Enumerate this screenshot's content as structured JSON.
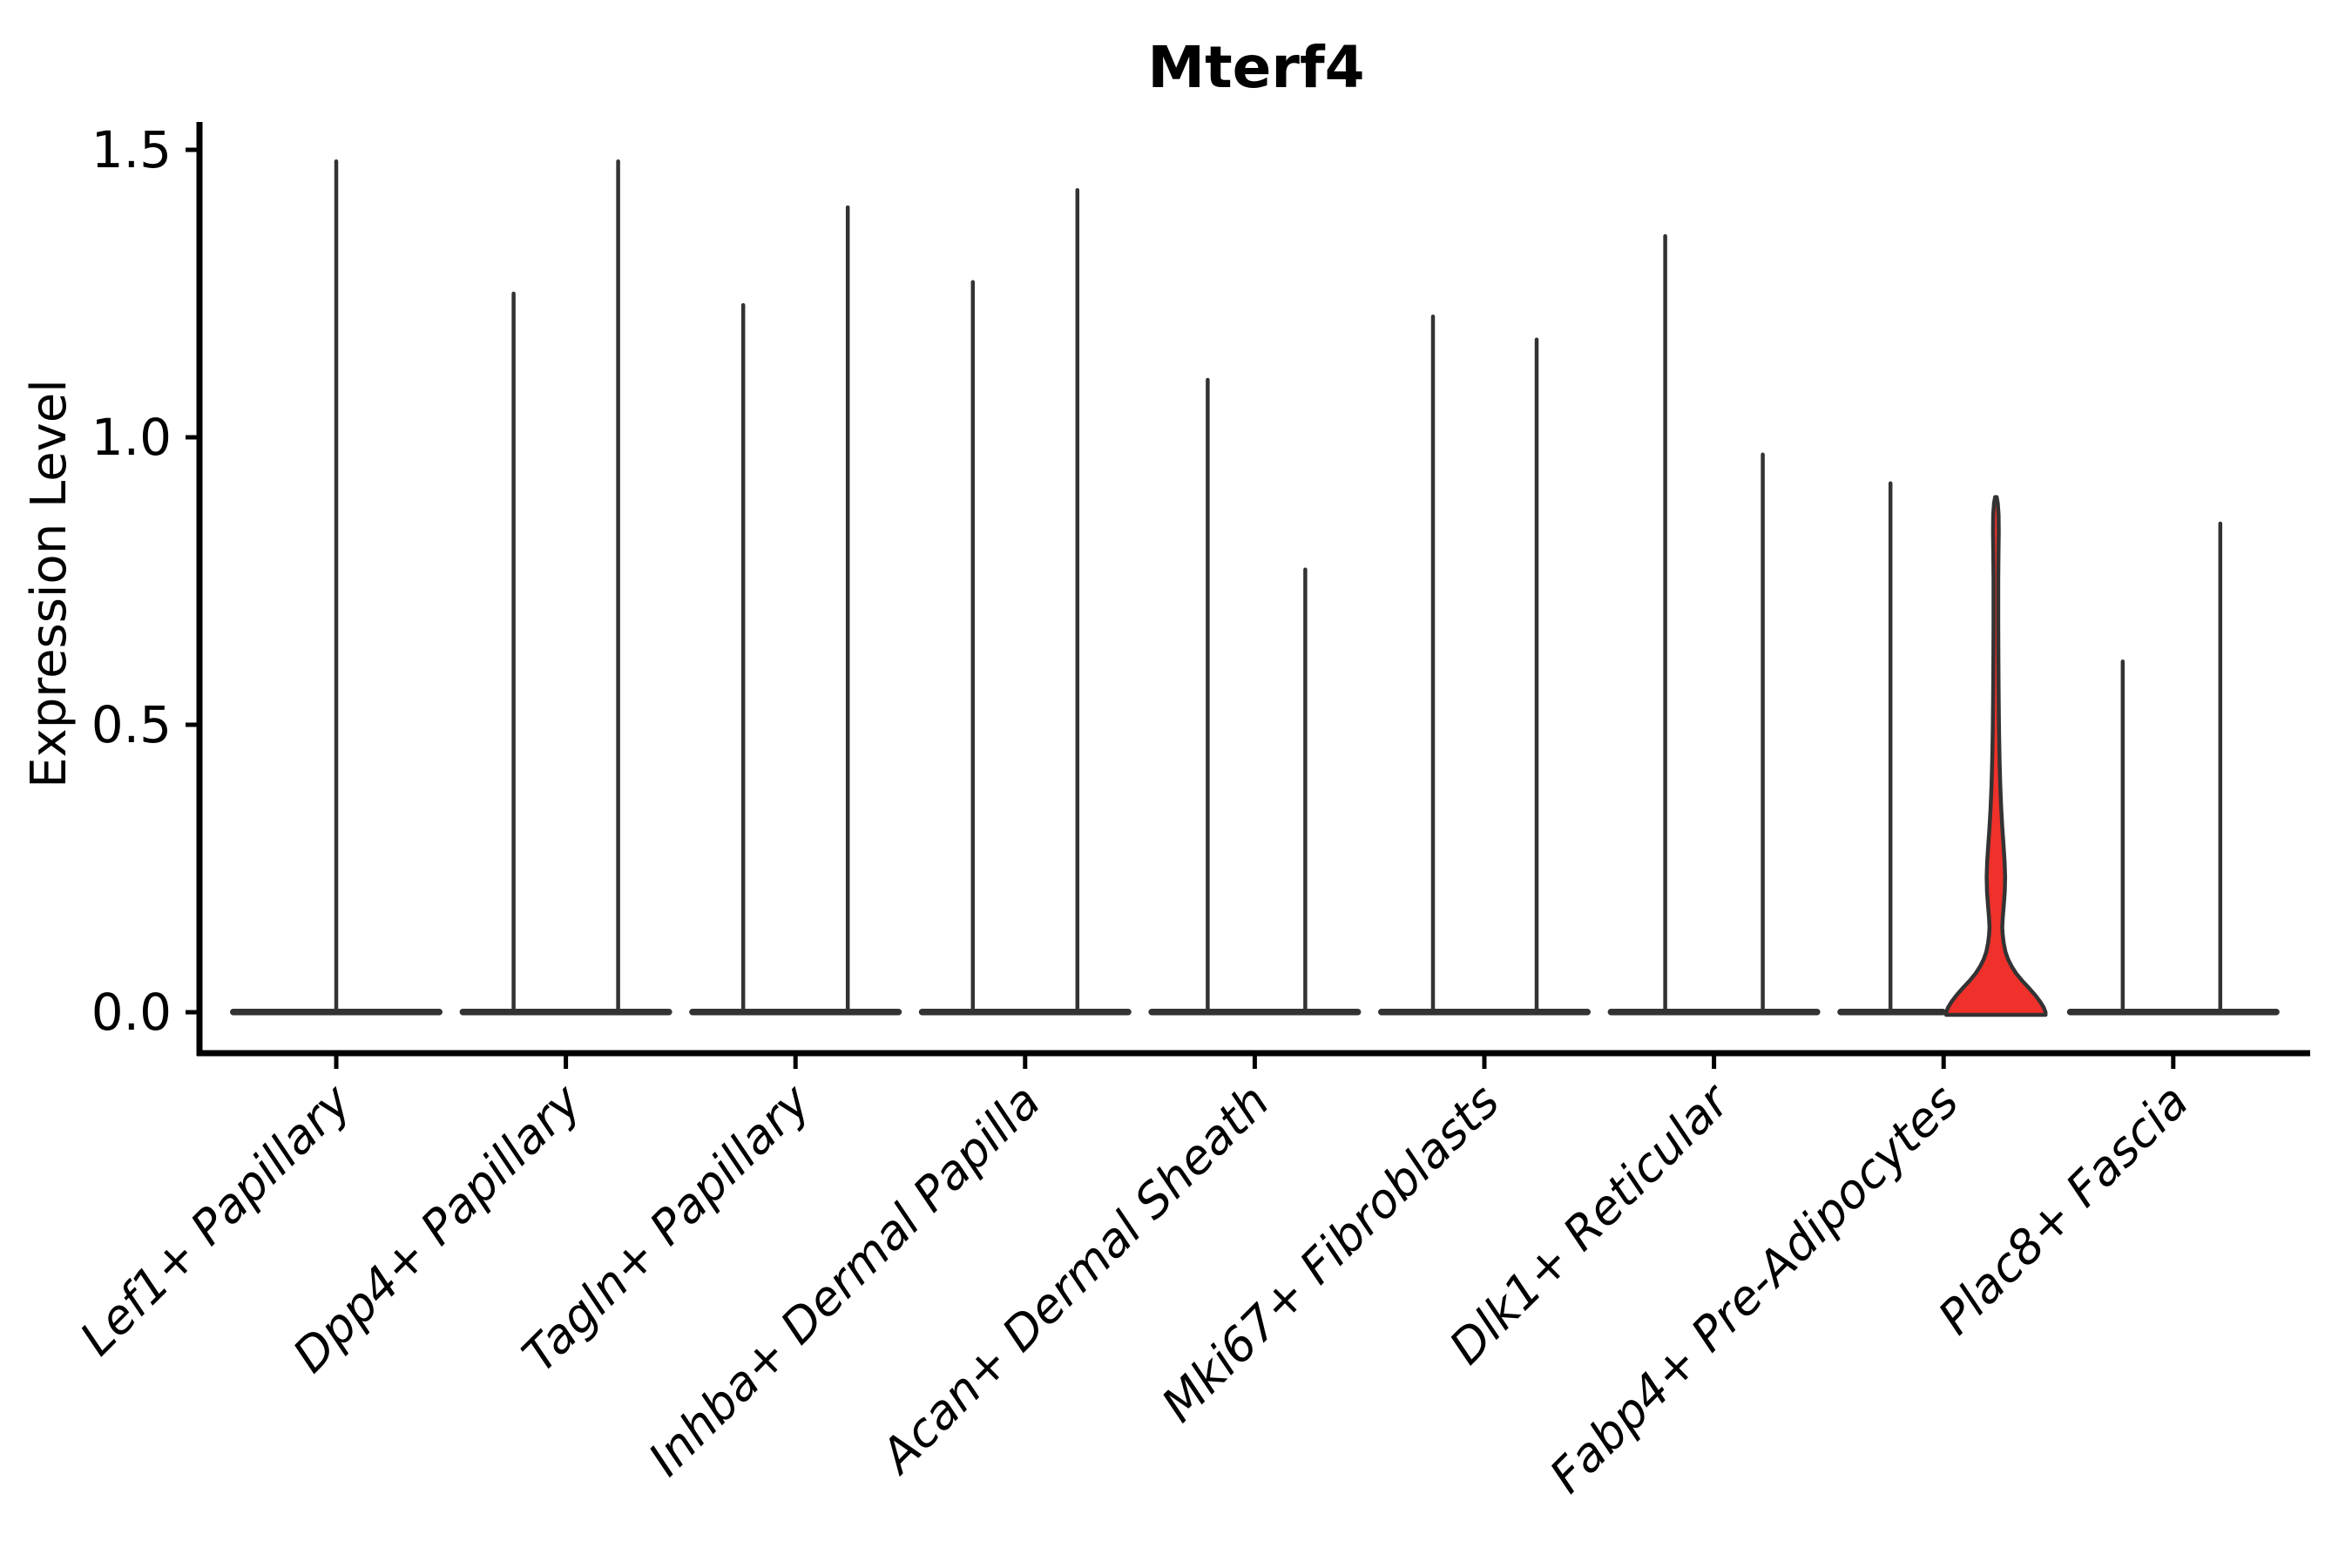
{
  "figure": {
    "title": "Mterf4",
    "background_color": "#ffffff"
  },
  "axes": {
    "ylabel": "Expression Level",
    "ytick_labels": [
      "1.5",
      "1.0",
      "0.5",
      "0.0"
    ]
  },
  "chart_data": {
    "type": "violin",
    "title": "Mterf4",
    "xlabel": "",
    "ylabel": "Expression Level",
    "yticks": [
      1.5,
      1.0,
      0.5,
      0.0
    ],
    "ylim": [
      -0.07,
      1.55
    ],
    "grid": false,
    "legend": false,
    "style": "seurat-vlnplot, mostly-zero expression: flat base at 0 with thin max-value spikes; two dodged violins per category except first; one highlighted filled violin",
    "outline_color": "#333333",
    "axis_color": "#000000",
    "highlight_fill": "#f0302a",
    "categories": [
      "Lef1+ Papillary",
      "Dpp4+ Papillary",
      "Tagln+ Papillary",
      "Inhba+ Dermal Papilla",
      "Acan+ Dermal Sheath",
      "Mki67+ Fibroblasts",
      "Dlk1+ Reticular",
      "Fabp4+ Pre-Adipocytes",
      "Plac8+ Fascia"
    ],
    "violins": [
      {
        "category": "Lef1+ Papillary",
        "base": "full",
        "spikes": [
          {
            "offset": 0,
            "max": 1.48
          }
        ]
      },
      {
        "category": "Dpp4+ Papillary",
        "base": "full",
        "spikes": [
          {
            "offset": -60,
            "max": 1.25
          },
          {
            "offset": 60,
            "max": 1.48
          }
        ]
      },
      {
        "category": "Tagln+ Papillary",
        "base": "full",
        "spikes": [
          {
            "offset": -60,
            "max": 1.23
          },
          {
            "offset": 60,
            "max": 1.4
          }
        ]
      },
      {
        "category": "Inhba+ Dermal Papilla",
        "base": "full",
        "spikes": [
          {
            "offset": -60,
            "max": 1.27
          },
          {
            "offset": 60,
            "max": 1.43
          }
        ]
      },
      {
        "category": "Acan+ Dermal Sheath",
        "base": "full",
        "spikes": [
          {
            "offset": -54,
            "max": 1.1
          },
          {
            "offset": 58,
            "max": 0.77
          }
        ]
      },
      {
        "category": "Mki67+ Fibroblasts",
        "base": "full",
        "spikes": [
          {
            "offset": -59,
            "max": 1.21
          },
          {
            "offset": 60,
            "max": 1.17
          }
        ]
      },
      {
        "category": "Dlk1+ Reticular",
        "base": "full",
        "spikes": [
          {
            "offset": -56,
            "max": 1.35
          },
          {
            "offset": 56,
            "max": 0.97
          }
        ]
      },
      {
        "category": "Fabp4+ Pre-Adipocytes",
        "base": "left-half",
        "spikes": [
          {
            "offset": -61,
            "max": 0.92
          }
        ],
        "highlight": {
          "offset": 60,
          "max": 0.9,
          "fill": "#f0302a",
          "profile": [
            [
              0.0,
              57
            ],
            [
              0.008,
              55
            ],
            [
              0.018,
              51
            ],
            [
              0.03,
              45
            ],
            [
              0.042,
              38
            ],
            [
              0.055,
              30
            ],
            [
              0.068,
              23
            ],
            [
              0.08,
              18
            ],
            [
              0.092,
              14
            ],
            [
              0.105,
              11
            ],
            [
              0.12,
              9
            ],
            [
              0.135,
              7.8
            ],
            [
              0.148,
              7.3
            ],
            [
              0.165,
              7.9
            ],
            [
              0.185,
              9.0
            ],
            [
              0.21,
              10.2
            ],
            [
              0.235,
              10.6
            ],
            [
              0.262,
              10.0
            ],
            [
              0.29,
              8.8
            ],
            [
              0.32,
              7.4
            ],
            [
              0.355,
              6.1
            ],
            [
              0.395,
              5.0
            ],
            [
              0.44,
              4.2
            ],
            [
              0.49,
              3.6
            ],
            [
              0.545,
              3.2
            ],
            [
              0.61,
              2.9
            ],
            [
              0.68,
              2.7
            ],
            [
              0.75,
              2.7
            ],
            [
              0.8,
              3.0
            ],
            [
              0.835,
              3.3
            ],
            [
              0.865,
              3.1
            ],
            [
              0.885,
              2.2
            ],
            [
              0.896,
              0.9
            ]
          ]
        }
      },
      {
        "category": "Plac8+ Fascia",
        "base": "full",
        "spikes": [
          {
            "offset": -58,
            "max": 0.61
          },
          {
            "offset": 54,
            "max": 0.85
          }
        ]
      }
    ]
  }
}
